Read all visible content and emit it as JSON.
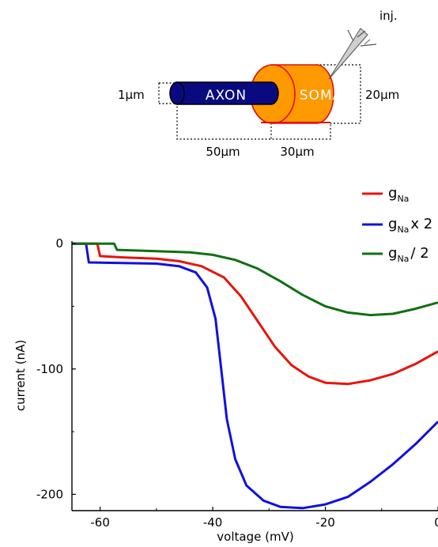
{
  "schematic": {
    "axon_label": "AXON",
    "soma_label": "SOMA",
    "inj_label": "inj.",
    "dim_axon_diameter": "1μm",
    "dim_soma_diameter": "20μm",
    "dim_axon_length": "50μm",
    "dim_soma_length": "30μm",
    "axon_color": "#0a0a80",
    "soma_color": "#ff9900",
    "soma_edge_color": "#e01010"
  },
  "chart_data": {
    "type": "line",
    "xlabel": "voltage (mV)",
    "ylabel": "current (nA)",
    "xlim": [
      -65,
      0
    ],
    "ylim": [
      -213,
      2
    ],
    "x_ticks": [
      -60,
      -40,
      -20,
      0
    ],
    "x_tick_labels": [
      "-60",
      "-40",
      "-20",
      "0"
    ],
    "y_ticks": [
      0,
      -100,
      -200
    ],
    "y_tick_labels": [
      "0",
      "-100",
      "-200"
    ],
    "legend_position": "top-right",
    "series": [
      {
        "name": "g_Na",
        "name_main": "g",
        "name_sub": "Na",
        "name_suffix": "",
        "color": "#e8140c",
        "points": [
          [
            -65,
            0
          ],
          [
            -60.5,
            0
          ],
          [
            -60,
            -10
          ],
          [
            -56,
            -11
          ],
          [
            -50,
            -12
          ],
          [
            -46,
            -14
          ],
          [
            -42,
            -18
          ],
          [
            -38,
            -27
          ],
          [
            -35,
            -42
          ],
          [
            -32,
            -62
          ],
          [
            -29,
            -82
          ],
          [
            -26,
            -97
          ],
          [
            -23,
            -106
          ],
          [
            -20,
            -111
          ],
          [
            -16,
            -112
          ],
          [
            -12,
            -109
          ],
          [
            -8,
            -104
          ],
          [
            -4,
            -96
          ],
          [
            0,
            -86
          ]
        ]
      },
      {
        "name": "g_Na x 2",
        "name_main": "g",
        "name_sub": "Na",
        "name_suffix": "x 2",
        "color": "#1010e0",
        "points": [
          [
            -65,
            0
          ],
          [
            -62.5,
            0
          ],
          [
            -62,
            -15
          ],
          [
            -56,
            -15.5
          ],
          [
            -50,
            -16
          ],
          [
            -46,
            -18
          ],
          [
            -43,
            -23
          ],
          [
            -41,
            -35
          ],
          [
            -39.5,
            -60
          ],
          [
            -38.5,
            -100
          ],
          [
            -37.5,
            -140
          ],
          [
            -36,
            -172
          ],
          [
            -34,
            -193
          ],
          [
            -31,
            -205
          ],
          [
            -28,
            -210
          ],
          [
            -24,
            -211
          ],
          [
            -20,
            -208
          ],
          [
            -16,
            -202
          ],
          [
            -12,
            -190
          ],
          [
            -8,
            -176
          ],
          [
            -4,
            -160
          ],
          [
            0,
            -142
          ]
        ]
      },
      {
        "name": "g_Na / 2",
        "name_main": "g",
        "name_sub": "Na",
        "name_suffix": "/ 2",
        "color": "#107010",
        "points": [
          [
            -65,
            0
          ],
          [
            -57.5,
            0
          ],
          [
            -57,
            -5
          ],
          [
            -50,
            -6
          ],
          [
            -44,
            -7
          ],
          [
            -40,
            -9
          ],
          [
            -36,
            -13
          ],
          [
            -32,
            -20
          ],
          [
            -28,
            -30
          ],
          [
            -24,
            -41
          ],
          [
            -20,
            -50
          ],
          [
            -16,
            -55
          ],
          [
            -12,
            -57
          ],
          [
            -8,
            -56
          ],
          [
            -4,
            -52
          ],
          [
            0,
            -47
          ]
        ]
      }
    ]
  }
}
